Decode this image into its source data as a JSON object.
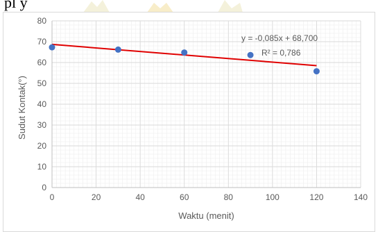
{
  "header_fragment": {
    "text": "pl y"
  },
  "chart_data": {
    "type": "scatter",
    "xlabel": "Waktu (menit)",
    "ylabel": "Sudut Kontak(°)",
    "xlim": [
      0,
      140
    ],
    "ylim": [
      0,
      80
    ],
    "x_ticks": [
      0,
      20,
      40,
      60,
      80,
      100,
      120,
      140
    ],
    "y_ticks": [
      0,
      10,
      20,
      30,
      40,
      50,
      60,
      70,
      80
    ],
    "grid": true,
    "points": [
      {
        "x": 0,
        "y": 67.3
      },
      {
        "x": 30,
        "y": 66.2
      },
      {
        "x": 60,
        "y": 64.8
      },
      {
        "x": 90,
        "y": 63.6
      },
      {
        "x": 120,
        "y": 55.8
      }
    ],
    "trendline": {
      "slope": -0.085,
      "intercept": 68.7,
      "x_range": [
        0,
        120
      ],
      "equation": "y = -0,085x + 68,700",
      "r_squared": "R² = 0,786"
    },
    "colors": {
      "points": "#4472c4",
      "trendline": "#e00000",
      "grid": "#d9d9d9",
      "axis": "#bfbfbf"
    }
  }
}
